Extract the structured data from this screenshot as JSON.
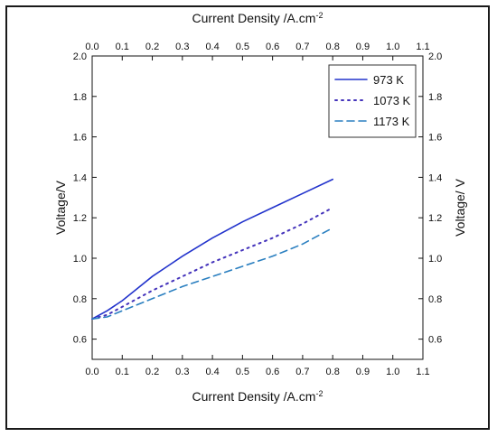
{
  "chart_data": {
    "type": "line",
    "xlabel_bottom": "Current Density /A.cm",
    "xlabel_top": "Current Density /A.cm",
    "xlabel_sup": "-2",
    "ylabel_left": "Voltage/V",
    "ylabel_right": "Voltage/ V",
    "xlim": [
      0.0,
      1.1
    ],
    "ylim": [
      0.5,
      2.0
    ],
    "xticks": [
      "0.0",
      "0.1",
      "0.2",
      "0.3",
      "0.4",
      "0.5",
      "0.6",
      "0.7",
      "0.8",
      "0.9",
      "1.0",
      "1.1"
    ],
    "yticks": [
      "0.6",
      "0.8",
      "1.0",
      "1.2",
      "1.4",
      "1.6",
      "1.8",
      "2.0"
    ],
    "legend_position": "top-right",
    "series": [
      {
        "name": "973 K",
        "style": "solid",
        "color": "#2233cc",
        "x": [
          0.0,
          0.05,
          0.1,
          0.15,
          0.2,
          0.25,
          0.3,
          0.4,
          0.5,
          0.6,
          0.7,
          0.8
        ],
        "y": [
          0.7,
          0.74,
          0.79,
          0.85,
          0.91,
          0.96,
          1.01,
          1.1,
          1.18,
          1.25,
          1.32,
          1.39
        ]
      },
      {
        "name": "1073 K",
        "style": "dotted",
        "color": "#4433bb",
        "x": [
          0.0,
          0.05,
          0.1,
          0.15,
          0.2,
          0.3,
          0.4,
          0.5,
          0.6,
          0.7,
          0.8
        ],
        "y": [
          0.7,
          0.72,
          0.76,
          0.8,
          0.84,
          0.91,
          0.98,
          1.04,
          1.1,
          1.17,
          1.25
        ]
      },
      {
        "name": "1173 K",
        "style": "dashed",
        "color": "#2a7fc0",
        "x": [
          0.0,
          0.05,
          0.1,
          0.15,
          0.2,
          0.3,
          0.4,
          0.5,
          0.6,
          0.7,
          0.8
        ],
        "y": [
          0.7,
          0.71,
          0.74,
          0.77,
          0.8,
          0.86,
          0.91,
          0.96,
          1.01,
          1.07,
          1.15
        ]
      }
    ]
  }
}
